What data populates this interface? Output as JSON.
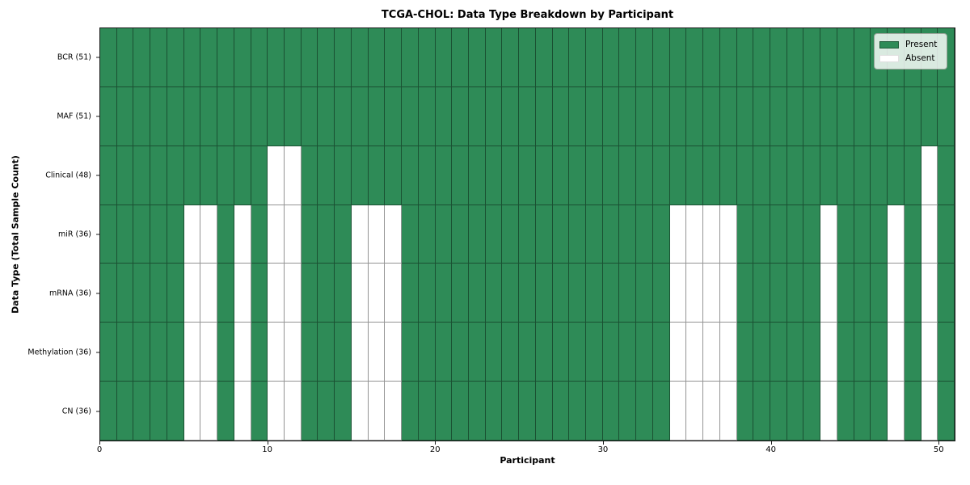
{
  "chart_data": {
    "type": "heatmap",
    "title": "TCGA-CHOL: Data Type Breakdown by Participant",
    "xlabel": "Participant",
    "ylabel": "Data Type (Total Sample Count)",
    "n_participants": 51,
    "x_ticks": [
      0,
      10,
      20,
      30,
      40,
      50
    ],
    "colors": {
      "present": "#2e8b57",
      "absent": "#ffffff",
      "grid_line": "rgba(0,0,0,0.42)"
    },
    "legend": {
      "position": "upper right",
      "entries": [
        {
          "label": "Present",
          "color": "#2e8b57"
        },
        {
          "label": "Absent",
          "color": "#ffffff"
        }
      ]
    },
    "rows": [
      {
        "label": "BCR (51)",
        "total_samples": 51,
        "absent": []
      },
      {
        "label": "MAF (51)",
        "total_samples": 51,
        "absent": []
      },
      {
        "label": "Clinical (48)",
        "total_samples": 48,
        "absent": [
          10,
          11,
          49
        ]
      },
      {
        "label": "miR (36)",
        "total_samples": 36,
        "absent": [
          5,
          6,
          8,
          10,
          11,
          15,
          16,
          17,
          34,
          35,
          36,
          37,
          43,
          47,
          49
        ]
      },
      {
        "label": "mRNA (36)",
        "total_samples": 36,
        "absent": [
          5,
          6,
          8,
          10,
          11,
          15,
          16,
          17,
          34,
          35,
          36,
          37,
          43,
          47,
          49
        ]
      },
      {
        "label": "Methylation (36)",
        "total_samples": 36,
        "absent": [
          5,
          6,
          8,
          10,
          11,
          15,
          16,
          17,
          34,
          35,
          36,
          37,
          43,
          47,
          49
        ]
      },
      {
        "label": "CN (36)",
        "total_samples": 36,
        "absent": [
          5,
          6,
          8,
          10,
          11,
          15,
          16,
          17,
          34,
          35,
          36,
          37,
          43,
          47,
          49
        ]
      }
    ]
  }
}
